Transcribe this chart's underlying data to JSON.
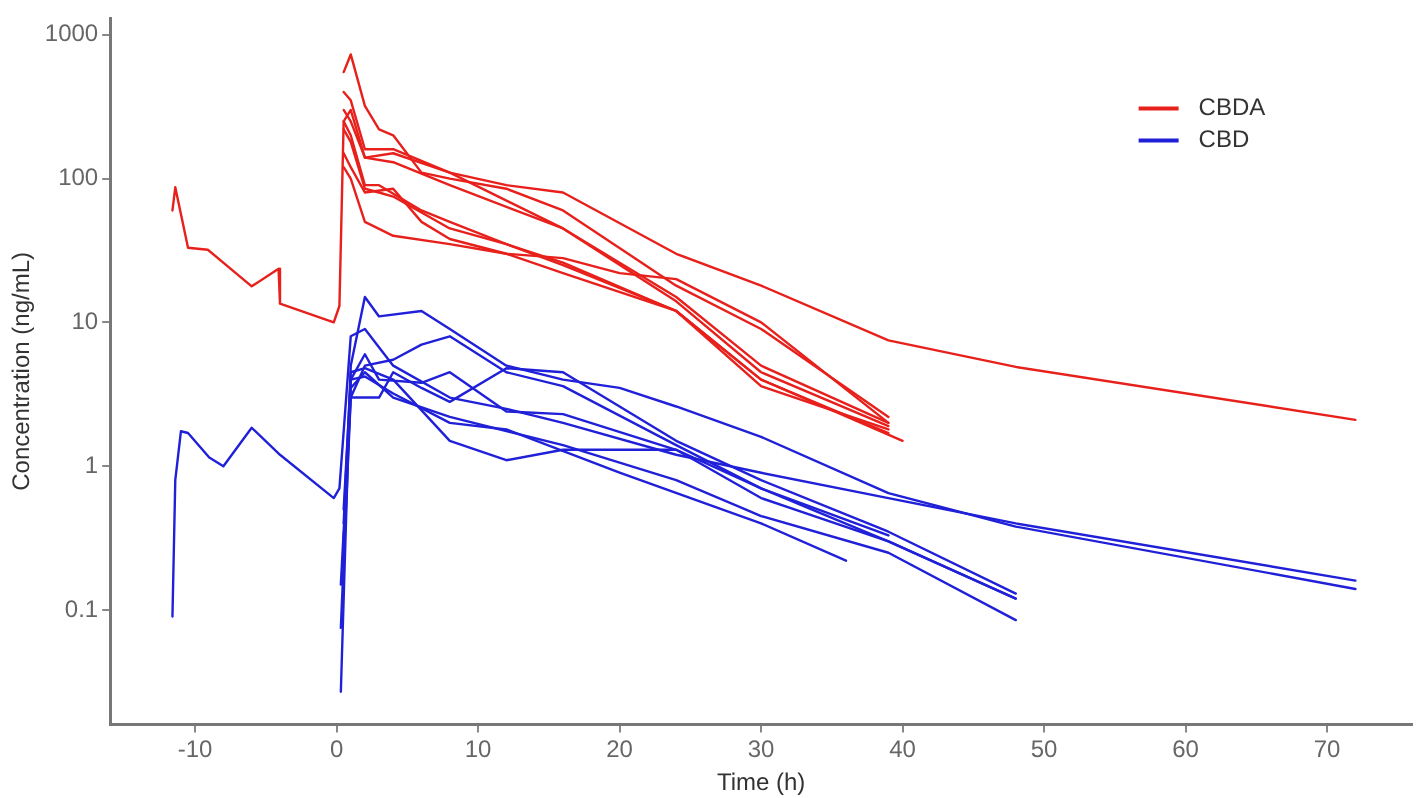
{
  "chart_data": {
    "type": "line",
    "xlabel": "Time (h)",
    "ylabel": "Concentration (ng/mL)",
    "log": "y",
    "grid": false,
    "legend": "top right",
    "marker": "none",
    "line_style": "solid",
    "xlim": [
      -16,
      76
    ],
    "xticks": [
      -10,
      0,
      10,
      20,
      30,
      40,
      50,
      60,
      70
    ],
    "ylim": [
      0.016,
      1300
    ],
    "yticks": [
      0.1,
      1,
      10,
      100,
      1000
    ],
    "series": [
      {
        "name": "CBDA",
        "color": "#e8201c",
        "x": [
          -11.6,
          -11.4,
          -10.5,
          -9.1,
          -6,
          -4.1,
          -4,
          -0.2,
          0.2,
          0.5,
          1,
          2,
          4,
          8,
          12,
          16,
          24,
          30,
          39,
          48,
          72
        ],
        "values": [
          60,
          87,
          33,
          32,
          17.8,
          23.6,
          13.5,
          10,
          13,
          250,
          300,
          140,
          150,
          110,
          90,
          80,
          30,
          18,
          7.5,
          4.9,
          2.1
        ]
      },
      {
        "color": "#e8201c",
        "x": [
          0.5,
          1,
          2,
          3,
          4,
          6,
          8,
          12,
          16,
          24,
          30,
          39
        ],
        "values": [
          550,
          730,
          320,
          220,
          200,
          110,
          100,
          85,
          60,
          18,
          9,
          2.2
        ]
      },
      {
        "color": "#e8201c",
        "x": [
          0.5,
          1,
          2,
          4,
          8,
          16,
          24,
          30,
          39
        ],
        "values": [
          400,
          350,
          160,
          160,
          110,
          45,
          15,
          5,
          2
        ]
      },
      {
        "color": "#e8201c",
        "x": [
          0.5,
          1,
          2,
          4,
          8,
          16,
          24,
          30,
          39
        ],
        "values": [
          300,
          250,
          140,
          130,
          90,
          45,
          14,
          4.5,
          1.9
        ]
      },
      {
        "color": "#e8201c",
        "x": [
          0.5,
          1,
          2,
          3,
          6,
          8,
          12,
          16,
          24,
          30,
          40
        ],
        "values": [
          250,
          200,
          90,
          90,
          60,
          50,
          35,
          25,
          12,
          4,
          1.5
        ]
      },
      {
        "color": "#e8201c",
        "x": [
          0.5,
          1,
          2,
          3,
          4,
          8,
          12,
          16,
          24,
          30,
          39
        ],
        "values": [
          220,
          180,
          85,
          80,
          75,
          45,
          35,
          26,
          12,
          3.6,
          1.8
        ]
      },
      {
        "color": "#e8201c",
        "x": [
          0.5,
          1,
          2,
          4,
          8,
          12,
          16,
          20,
          24,
          30,
          39
        ],
        "values": [
          120,
          100,
          50,
          40,
          35,
          30,
          28,
          22,
          20,
          10,
          2
        ]
      },
      {
        "color": "#e8201c",
        "x": [
          0.5,
          1,
          2,
          4,
          6,
          8,
          12,
          16,
          24,
          30,
          39
        ],
        "values": [
          150,
          120,
          80,
          85,
          50,
          38,
          30,
          22,
          12,
          4,
          1.7
        ]
      },
      {
        "name": "CBD",
        "color": "#2020d8",
        "x": [
          -11.6,
          -11.4,
          -11,
          -10.5,
          -9,
          -8,
          -6,
          -4,
          -0.2,
          0.2,
          1,
          2,
          4,
          8,
          12,
          16,
          24,
          30,
          39,
          48,
          72
        ],
        "values": [
          0.09,
          0.8,
          1.75,
          1.7,
          1.15,
          1,
          1.85,
          1.2,
          0.6,
          0.7,
          8,
          9,
          5,
          3,
          2.5,
          2,
          1.2,
          0.9,
          0.6,
          0.4,
          0.16
        ]
      },
      {
        "color": "#2020d8",
        "x": [
          0.3,
          1,
          2,
          3,
          6,
          8,
          12,
          16,
          20,
          24,
          30,
          39,
          48,
          72
        ],
        "values": [
          0.027,
          5,
          15,
          11,
          12,
          9,
          5,
          4,
          3.5,
          2.6,
          1.6,
          0.65,
          0.38,
          0.14
        ]
      },
      {
        "color": "#2020d8",
        "x": [
          0.3,
          1,
          2,
          4,
          6,
          8,
          12,
          16,
          24,
          30,
          39
        ],
        "values": [
          0.075,
          3,
          5,
          5.5,
          7,
          8,
          4.5,
          3.6,
          1.4,
          0.7,
          0.33
        ]
      },
      {
        "color": "#2020d8",
        "x": [
          0.3,
          1,
          2,
          3,
          4,
          6,
          8,
          12,
          16,
          24,
          30,
          39,
          48
        ],
        "values": [
          0.15,
          3,
          3,
          3,
          4.5,
          3.5,
          2.8,
          4.8,
          4.5,
          1.5,
          0.8,
          0.35,
          0.13
        ]
      },
      {
        "color": "#2020d8",
        "x": [
          0.5,
          1,
          2,
          3,
          6,
          8,
          12,
          16,
          24,
          30,
          39,
          48
        ],
        "values": [
          0.5,
          4,
          6,
          4,
          3.8,
          4.5,
          2.4,
          2.3,
          1.3,
          0.6,
          0.3,
          0.12
        ]
      },
      {
        "color": "#2020d8",
        "x": [
          0.5,
          1,
          2,
          4,
          8,
          12,
          16,
          24,
          30,
          39,
          48
        ],
        "values": [
          0.4,
          4.5,
          4.8,
          4,
          1.5,
          1.1,
          1.3,
          1.3,
          0.7,
          0.3,
          0.12
        ]
      },
      {
        "color": "#2020d8",
        "x": [
          0.5,
          1,
          2,
          4,
          8,
          12,
          20,
          30,
          36
        ],
        "values": [
          0.3,
          4,
          4.2,
          3.2,
          2,
          1.8,
          0.9,
          0.4,
          0.22
        ]
      },
      {
        "color": "#2020d8",
        "x": [
          0.5,
          1,
          2,
          4,
          8,
          16,
          24,
          30,
          39,
          48
        ],
        "values": [
          0.3,
          3.5,
          4.5,
          3,
          2.2,
          1.4,
          0.8,
          0.45,
          0.25,
          0.085
        ]
      }
    ]
  }
}
